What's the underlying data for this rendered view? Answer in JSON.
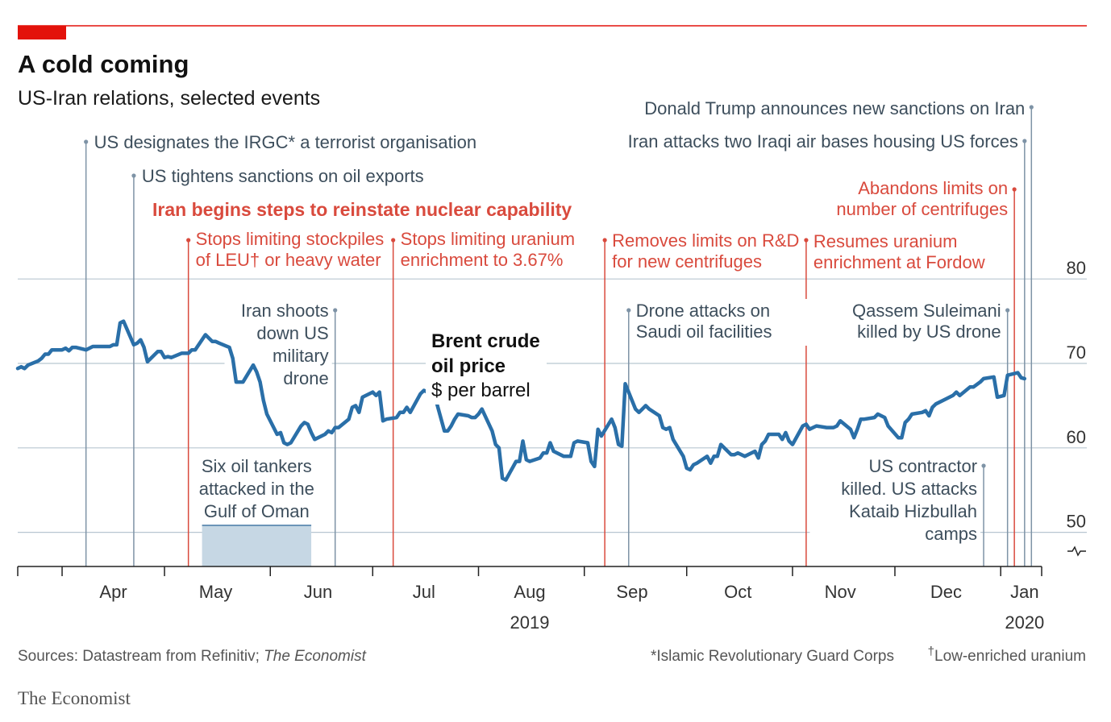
{
  "header": {
    "title": "A cold coming",
    "subtitle": "US-Iran relations, selected events"
  },
  "colors": {
    "accent": "#e3120b",
    "line": "#2a6fa8",
    "blue_event": "#7e93a6",
    "red_event": "#d94a3d",
    "grid": "#b8c6d1",
    "shade": "#c6d7e4"
  },
  "series_label": {
    "line1": "Brent crude",
    "line2": "oil price",
    "unit": "$ per barrel"
  },
  "red_heading": "Iran begins steps to reinstate nuclear capability",
  "events": [
    {
      "lines": [
        "US designates the IRGC* a terrorist organisation"
      ],
      "color": "blue",
      "date": "2019-04-08"
    },
    {
      "lines": [
        "US tightens sanctions on oil exports"
      ],
      "color": "blue",
      "date": "2019-04-22"
    },
    {
      "lines": [
        "Stops limiting stockpiles",
        "of LEU† or heavy water"
      ],
      "color": "red",
      "date": "2019-05-08"
    },
    {
      "lines": [
        "Iran shoots",
        "down US",
        "military",
        "drone"
      ],
      "color": "blue",
      "date": "2019-06-20"
    },
    {
      "lines": [
        "Stops limiting uranium",
        "enrichment to 3.67%"
      ],
      "color": "red",
      "date": "2019-07-07"
    },
    {
      "lines": [
        "Removes limits on R&D",
        "for new centrifuges"
      ],
      "color": "red",
      "date": "2019-09-07"
    },
    {
      "lines": [
        "Drone attacks on",
        "Saudi oil facilities"
      ],
      "color": "blue",
      "date": "2019-09-14"
    },
    {
      "lines": [
        "Resumes uranium",
        "enrichment at Fordow"
      ],
      "color": "red",
      "date": "2019-11-05"
    },
    {
      "lines": [
        "US contractor",
        "killed. US attacks",
        "Kataib Hizbullah",
        "camps"
      ],
      "color": "blue",
      "date": "2019-12-27"
    },
    {
      "lines": [
        "Qassem Suleimani",
        "killed by US drone"
      ],
      "color": "blue",
      "date": "2020-01-03"
    },
    {
      "lines": [
        "Abandons limits on",
        "number of centrifuges"
      ],
      "color": "red",
      "date": "2020-01-05"
    },
    {
      "lines": [
        "Iran attacks two Iraqi air bases housing US forces"
      ],
      "color": "blue",
      "date": "2020-01-08"
    },
    {
      "lines": [
        "Donald Trump announces new sanctions on Iran"
      ],
      "color": "blue",
      "date": "2020-01-10"
    }
  ],
  "shaded_event": {
    "lines": [
      "Six oil tankers",
      "attacked in the",
      "Gulf of Oman"
    ],
    "start": "2019-05-12",
    "end": "2019-06-13"
  },
  "footer": {
    "sources_prefix": "Sources: Datastream from Refinitiv; ",
    "sources_italic": "The Economist",
    "note1": "*Islamic Revolutionary Guard Corps",
    "note2_mark": "†",
    "note2": "Low-enriched uranium",
    "brand": "The Economist"
  },
  "chart_data": {
    "type": "line",
    "title": "A cold coming",
    "subtitle": "US-Iran relations, selected events",
    "ylabel": "$ per barrel",
    "ylim": [
      45,
      80
    ],
    "y_ticks": [
      50,
      60,
      70,
      80
    ],
    "y_axis_side": "right",
    "y_axis_break": true,
    "xlim": [
      "2019-03-19",
      "2020-01-13"
    ],
    "x_ticks": [
      {
        "label": "Apr",
        "date": "2019-04-16"
      },
      {
        "label": "May",
        "date": "2019-05-16"
      },
      {
        "label": "Jun",
        "date": "2019-06-15"
      },
      {
        "label": "Jul",
        "date": "2019-07-16"
      },
      {
        "label": "Aug",
        "date": "2019-08-16"
      },
      {
        "label": "Sep",
        "date": "2019-09-15"
      },
      {
        "label": "Oct",
        "date": "2019-10-16"
      },
      {
        "label": "Nov",
        "date": "2019-11-15"
      },
      {
        "label": "Dec",
        "date": "2019-12-16"
      },
      {
        "label": "Jan",
        "date": "2020-01-08"
      }
    ],
    "month_boundaries": [
      "2019-04-01",
      "2019-05-01",
      "2019-06-01",
      "2019-07-01",
      "2019-08-01",
      "2019-09-01",
      "2019-10-01",
      "2019-11-01",
      "2019-12-01",
      "2020-01-01"
    ],
    "year_labels": [
      {
        "label": "2019",
        "date": "2019-08-16"
      },
      {
        "label": "2020",
        "date": "2020-01-08"
      }
    ],
    "grid": true,
    "series": [
      {
        "name": "Brent crude oil price",
        "points": [
          [
            "2019-03-19",
            69.4
          ],
          [
            "2019-03-20",
            69.6
          ],
          [
            "2019-03-21",
            69.4
          ],
          [
            "2019-03-22",
            69.8
          ],
          [
            "2019-03-25",
            70.3
          ],
          [
            "2019-03-26",
            70.6
          ],
          [
            "2019-03-27",
            71.1
          ],
          [
            "2019-03-28",
            71.1
          ],
          [
            "2019-03-29",
            71.6
          ],
          [
            "2019-04-01",
            71.6
          ],
          [
            "2019-04-02",
            71.8
          ],
          [
            "2019-04-03",
            71.5
          ],
          [
            "2019-04-04",
            71.9
          ],
          [
            "2019-04-05",
            71.9
          ],
          [
            "2019-04-08",
            71.6
          ],
          [
            "2019-04-09",
            71.8
          ],
          [
            "2019-04-10",
            72.0
          ],
          [
            "2019-04-11",
            72.0
          ],
          [
            "2019-04-12",
            72.0
          ],
          [
            "2019-04-15",
            72.0
          ],
          [
            "2019-04-16",
            72.2
          ],
          [
            "2019-04-17",
            72.2
          ],
          [
            "2019-04-18",
            74.8
          ],
          [
            "2019-04-19",
            75.0
          ],
          [
            "2019-04-22",
            72.2
          ],
          [
            "2019-04-23",
            72.4
          ],
          [
            "2019-04-24",
            72.8
          ],
          [
            "2019-04-25",
            71.9
          ],
          [
            "2019-04-26",
            70.2
          ],
          [
            "2019-04-29",
            71.4
          ],
          [
            "2019-04-30",
            71.4
          ],
          [
            "2019-05-01",
            70.7
          ],
          [
            "2019-05-02",
            70.8
          ],
          [
            "2019-05-03",
            70.7
          ],
          [
            "2019-05-06",
            71.2
          ],
          [
            "2019-05-07",
            71.2
          ],
          [
            "2019-05-08",
            71.2
          ],
          [
            "2019-05-09",
            71.6
          ],
          [
            "2019-05-10",
            71.6
          ],
          [
            "2019-05-13",
            73.4
          ],
          [
            "2019-05-14",
            73.0
          ],
          [
            "2019-05-15",
            72.6
          ],
          [
            "2019-05-16",
            72.6
          ],
          [
            "2019-05-17",
            72.4
          ],
          [
            "2019-05-20",
            71.9
          ],
          [
            "2019-05-21",
            70.6
          ],
          [
            "2019-05-22",
            67.8
          ],
          [
            "2019-05-23",
            67.8
          ],
          [
            "2019-05-24",
            67.8
          ],
          [
            "2019-05-27",
            69.8
          ],
          [
            "2019-05-28",
            69.0
          ],
          [
            "2019-05-29",
            67.8
          ],
          [
            "2019-05-30",
            65.6
          ],
          [
            "2019-05-31",
            64.0
          ],
          [
            "2019-06-03",
            61.6
          ],
          [
            "2019-06-04",
            61.8
          ],
          [
            "2019-06-05",
            60.6
          ],
          [
            "2019-06-06",
            60.4
          ],
          [
            "2019-06-07",
            60.6
          ],
          [
            "2019-06-10",
            62.6
          ],
          [
            "2019-06-11",
            63.0
          ],
          [
            "2019-06-12",
            62.8
          ],
          [
            "2019-06-13",
            61.8
          ],
          [
            "2019-06-14",
            61.0
          ],
          [
            "2019-06-17",
            61.6
          ],
          [
            "2019-06-18",
            62.0
          ],
          [
            "2019-06-19",
            61.8
          ],
          [
            "2019-06-20",
            62.4
          ],
          [
            "2019-06-21",
            62.4
          ],
          [
            "2019-06-24",
            63.4
          ],
          [
            "2019-06-25",
            64.8
          ],
          [
            "2019-06-26",
            65.0
          ],
          [
            "2019-06-27",
            64.2
          ],
          [
            "2019-06-28",
            66.0
          ],
          [
            "2019-07-01",
            66.6
          ],
          [
            "2019-07-02",
            66.2
          ],
          [
            "2019-07-03",
            66.6
          ],
          [
            "2019-07-04",
            63.2
          ],
          [
            "2019-07-05",
            63.4
          ],
          [
            "2019-07-08",
            63.6
          ],
          [
            "2019-07-09",
            64.2
          ],
          [
            "2019-07-10",
            64.2
          ],
          [
            "2019-07-11",
            64.8
          ],
          [
            "2019-07-12",
            64.2
          ],
          [
            "2019-07-15",
            66.4
          ],
          [
            "2019-07-16",
            66.8
          ],
          [
            "2019-07-17",
            66.6
          ],
          [
            "2019-07-18",
            66.6
          ],
          [
            "2019-07-19",
            66.4
          ],
          [
            "2019-07-22",
            62.0
          ],
          [
            "2019-07-23",
            62.0
          ],
          [
            "2019-07-24",
            62.6
          ],
          [
            "2019-07-25",
            63.4
          ],
          [
            "2019-07-26",
            64.0
          ],
          [
            "2019-07-29",
            63.8
          ],
          [
            "2019-07-30",
            63.6
          ],
          [
            "2019-07-31",
            63.6
          ],
          [
            "2019-08-01",
            64.0
          ],
          [
            "2019-08-02",
            64.6
          ],
          [
            "2019-08-05",
            62.0
          ],
          [
            "2019-08-06",
            60.4
          ],
          [
            "2019-08-07",
            60.0
          ],
          [
            "2019-08-08",
            56.4
          ],
          [
            "2019-08-09",
            56.2
          ],
          [
            "2019-08-12",
            58.4
          ],
          [
            "2019-08-13",
            58.4
          ],
          [
            "2019-08-14",
            60.8
          ],
          [
            "2019-08-15",
            58.6
          ],
          [
            "2019-08-16",
            58.4
          ],
          [
            "2019-08-19",
            58.8
          ],
          [
            "2019-08-20",
            59.4
          ],
          [
            "2019-08-21",
            59.4
          ],
          [
            "2019-08-22",
            60.6
          ],
          [
            "2019-08-23",
            59.6
          ],
          [
            "2019-08-26",
            59.0
          ],
          [
            "2019-08-27",
            59.0
          ],
          [
            "2019-08-28",
            59.0
          ],
          [
            "2019-08-29",
            60.6
          ],
          [
            "2019-08-30",
            60.8
          ],
          [
            "2019-09-02",
            60.6
          ],
          [
            "2019-09-03",
            58.4
          ],
          [
            "2019-09-04",
            57.8
          ],
          [
            "2019-09-05",
            62.2
          ],
          [
            "2019-09-06",
            61.4
          ],
          [
            "2019-09-09",
            63.4
          ],
          [
            "2019-09-10",
            62.4
          ],
          [
            "2019-09-11",
            60.4
          ],
          [
            "2019-09-12",
            60.2
          ],
          [
            "2019-09-13",
            67.6
          ],
          [
            "2019-09-16",
            64.6
          ],
          [
            "2019-09-17",
            64.2
          ],
          [
            "2019-09-18",
            64.6
          ],
          [
            "2019-09-19",
            65.0
          ],
          [
            "2019-09-20",
            64.6
          ],
          [
            "2019-09-23",
            63.8
          ],
          [
            "2019-09-24",
            62.4
          ],
          [
            "2019-09-25",
            62.2
          ],
          [
            "2019-09-26",
            62.4
          ],
          [
            "2019-09-27",
            61.0
          ],
          [
            "2019-09-30",
            59.0
          ],
          [
            "2019-10-01",
            57.6
          ],
          [
            "2019-10-02",
            57.4
          ],
          [
            "2019-10-03",
            58.0
          ],
          [
            "2019-10-04",
            58.2
          ],
          [
            "2019-10-07",
            59.0
          ],
          [
            "2019-10-08",
            58.2
          ],
          [
            "2019-10-09",
            59.0
          ],
          [
            "2019-10-10",
            59.0
          ],
          [
            "2019-10-11",
            60.4
          ],
          [
            "2019-10-14",
            59.2
          ],
          [
            "2019-10-15",
            59.2
          ],
          [
            "2019-10-16",
            59.4
          ],
          [
            "2019-10-17",
            59.2
          ],
          [
            "2019-10-18",
            59.0
          ],
          [
            "2019-10-21",
            59.6
          ],
          [
            "2019-10-22",
            58.8
          ],
          [
            "2019-10-23",
            60.4
          ],
          [
            "2019-10-24",
            60.8
          ],
          [
            "2019-10-25",
            61.6
          ],
          [
            "2019-10-28",
            61.6
          ],
          [
            "2019-10-29",
            61.0
          ],
          [
            "2019-10-30",
            61.8
          ],
          [
            "2019-10-31",
            60.8
          ],
          [
            "2019-11-01",
            60.4
          ],
          [
            "2019-11-04",
            62.6
          ],
          [
            "2019-11-05",
            62.8
          ],
          [
            "2019-11-06",
            62.2
          ],
          [
            "2019-11-07",
            62.4
          ],
          [
            "2019-11-08",
            62.6
          ],
          [
            "2019-11-11",
            62.4
          ],
          [
            "2019-11-12",
            62.4
          ],
          [
            "2019-11-13",
            62.4
          ],
          [
            "2019-11-14",
            62.6
          ],
          [
            "2019-11-15",
            63.2
          ],
          [
            "2019-11-18",
            62.2
          ],
          [
            "2019-11-19",
            61.2
          ],
          [
            "2019-11-20",
            62.2
          ],
          [
            "2019-11-21",
            63.4
          ],
          [
            "2019-11-22",
            63.4
          ],
          [
            "2019-11-25",
            63.6
          ],
          [
            "2019-11-26",
            64.0
          ],
          [
            "2019-11-27",
            63.8
          ],
          [
            "2019-11-28",
            63.6
          ],
          [
            "2019-11-29",
            62.6
          ],
          [
            "2019-12-02",
            61.2
          ],
          [
            "2019-12-03",
            61.2
          ],
          [
            "2019-12-04",
            63.0
          ],
          [
            "2019-12-05",
            63.4
          ],
          [
            "2019-12-06",
            64.0
          ],
          [
            "2019-12-09",
            64.2
          ],
          [
            "2019-12-10",
            64.4
          ],
          [
            "2019-12-11",
            63.8
          ],
          [
            "2019-12-12",
            64.8
          ],
          [
            "2019-12-13",
            65.2
          ],
          [
            "2019-12-16",
            65.8
          ],
          [
            "2019-12-17",
            66.0
          ],
          [
            "2019-12-18",
            66.2
          ],
          [
            "2019-12-19",
            66.6
          ],
          [
            "2019-12-20",
            66.2
          ],
          [
            "2019-12-23",
            67.2
          ],
          [
            "2019-12-24",
            67.2
          ],
          [
            "2019-12-26",
            67.8
          ],
          [
            "2019-12-27",
            68.2
          ],
          [
            "2019-12-30",
            68.4
          ],
          [
            "2019-12-31",
            66.0
          ],
          [
            "2020-01-02",
            66.2
          ],
          [
            "2020-01-03",
            68.6
          ],
          [
            "2020-01-06",
            68.9
          ],
          [
            "2020-01-07",
            68.3
          ],
          [
            "2020-01-08",
            68.2
          ]
        ]
      }
    ]
  }
}
